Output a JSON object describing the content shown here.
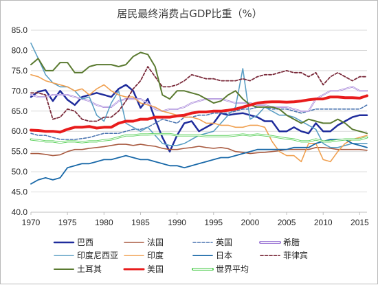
{
  "chart_data": {
    "type": "line",
    "title": "居民最终消费占GDP比重（%）",
    "xlabel": "",
    "ylabel": "",
    "xlim": [
      1970,
      2016
    ],
    "ylim": [
      40,
      85
    ],
    "x_ticks": [
      1970,
      1975,
      1980,
      1985,
      1990,
      1995,
      2000,
      2005,
      2010,
      2015
    ],
    "y_ticks": [
      "40.0",
      "45.0",
      "50.0",
      "55.0",
      "60.0",
      "65.0",
      "70.0",
      "75.0",
      "80.0",
      "85.0"
    ],
    "grid": "horizontal",
    "legend_position": "bottom",
    "x_start": 1970,
    "series": [
      {
        "name": "巴西",
        "color": "#1f2c9c",
        "style": "solid",
        "width": 2.5,
        "values": [
          68.5,
          69.8,
          70.2,
          67.5,
          70.0,
          67.8,
          66.5,
          68.5,
          69.0,
          69.5,
          69.0,
          68.5,
          70.5,
          71.5,
          70.0,
          65.8,
          68.0,
          63.0,
          58.5,
          55.0,
          59.0,
          62.0,
          62.5,
          60.0,
          61.0,
          62.0,
          64.5,
          64.0,
          64.3,
          64.5,
          64.0,
          63.5,
          62.5,
          62.5,
          60.0,
          60.0,
          61.0,
          60.0,
          59.5,
          62.0,
          60.0,
          60.0,
          61.5,
          62.5,
          63.5,
          64.0,
          64.0
        ]
      },
      {
        "name": "法国",
        "color": "#a85a40",
        "style": "solid",
        "width": 1.6,
        "values": [
          54.5,
          54.5,
          54.3,
          54.0,
          54.2,
          55.0,
          55.5,
          55.5,
          55.8,
          56.0,
          56.2,
          56.5,
          56.8,
          56.8,
          56.5,
          56.8,
          56.5,
          56.3,
          55.8,
          55.5,
          55.5,
          55.8,
          56.0,
          56.3,
          56.0,
          55.8,
          56.0,
          55.7,
          55.0,
          54.8,
          54.5,
          54.7,
          54.8,
          55.0,
          55.2,
          55.5,
          55.5,
          55.5,
          55.5,
          56.0,
          56.0,
          55.8,
          55.5,
          55.5,
          55.5,
          55.5,
          55.3
        ]
      },
      {
        "name": "英国",
        "color": "#4a74b0",
        "style": "dashed",
        "width": 1.6,
        "values": [
          59.5,
          59.0,
          59.0,
          58.5,
          58.0,
          58.0,
          58.0,
          58.2,
          58.5,
          59.0,
          59.5,
          59.5,
          59.5,
          60.0,
          60.5,
          60.5,
          61.0,
          62.0,
          63.0,
          62.5,
          62.0,
          63.5,
          63.5,
          64.0,
          64.0,
          64.5,
          64.5,
          64.5,
          65.0,
          65.5,
          65.5,
          66.0,
          66.0,
          65.5,
          65.5,
          65.5,
          65.0,
          64.5,
          65.0,
          65.5,
          65.5,
          65.5,
          65.5,
          65.5,
          65.5,
          65.5,
          66.5
        ]
      },
      {
        "name": "希腊",
        "color": "#9f7cd6",
        "style": "double",
        "width": 2.2,
        "values": [
          69.0,
          68.5,
          68.5,
          69.0,
          69.0,
          69.0,
          68.5,
          68.0,
          67.5,
          66.5,
          66.0,
          66.0,
          67.5,
          68.0,
          68.0,
          68.0,
          67.0,
          65.5,
          65.0,
          65.5,
          65.5,
          66.0,
          67.0,
          67.5,
          68.0,
          68.0,
          68.0,
          67.5,
          67.0,
          67.0,
          67.0,
          66.5,
          66.5,
          66.0,
          66.0,
          66.0,
          65.5,
          65.0,
          65.0,
          68.0,
          69.0,
          70.0,
          70.0,
          70.5,
          71.0,
          70.0,
          70.0
        ]
      },
      {
        "name": "印度尼西亚",
        "color": "#5a9ec4",
        "style": "solid",
        "width": 1.6,
        "values": [
          81.8,
          78.0,
          74.0,
          72.0,
          71.0,
          71.0,
          70.0,
          68.0,
          68.5,
          64.0,
          62.5,
          67.0,
          70.0,
          62.0,
          61.0,
          60.0,
          61.0,
          59.0,
          57.0,
          56.5,
          56.5,
          57.0,
          58.0,
          59.0,
          59.5,
          60.0,
          62.0,
          64.0,
          66.0,
          75.5,
          63.0,
          64.0,
          66.0,
          65.0,
          64.0,
          64.0,
          63.5,
          62.5,
          61.5,
          60.5,
          57.0,
          56.0,
          56.0,
          56.5,
          57.0,
          57.0,
          57.0
        ]
      },
      {
        "name": "印度",
        "color": "#f0a050",
        "style": "solid",
        "width": 1.6,
        "values": [
          74.0,
          73.5,
          72.5,
          72.0,
          71.5,
          71.0,
          70.0,
          70.5,
          69.0,
          70.5,
          71.5,
          70.0,
          69.0,
          68.5,
          68.5,
          67.0,
          66.5,
          66.0,
          65.0,
          64.5,
          64.0,
          63.5,
          63.5,
          63.0,
          62.0,
          62.0,
          61.5,
          61.5,
          61.0,
          61.0,
          61.5,
          61.5,
          61.0,
          57.5,
          55.0,
          54.0,
          54.0,
          52.5,
          57.0,
          57.0,
          53.0,
          52.5,
          55.0,
          57.0,
          58.0,
          58.5,
          59.0
        ]
      },
      {
        "name": "日本",
        "color": "#1868a8",
        "style": "solid",
        "width": 1.8,
        "values": [
          47.0,
          48.0,
          48.5,
          48.0,
          48.5,
          51.0,
          51.5,
          52.0,
          52.0,
          52.5,
          53.0,
          53.0,
          53.5,
          54.0,
          53.5,
          53.0,
          53.0,
          52.5,
          52.0,
          51.5,
          51.5,
          51.0,
          51.5,
          52.0,
          52.5,
          53.0,
          53.5,
          53.5,
          54.0,
          54.5,
          55.0,
          55.5,
          55.5,
          55.5,
          55.5,
          55.5,
          56.0,
          56.0,
          56.0,
          57.0,
          57.5,
          58.0,
          58.0,
          58.0,
          57.0,
          56.5,
          56.0
        ]
      },
      {
        "name": "菲律宾",
        "color": "#7a2a3a",
        "style": "dashed",
        "width": 1.8,
        "values": [
          69.5,
          69.5,
          69.0,
          63.0,
          63.5,
          65.5,
          65.0,
          63.0,
          62.5,
          62.5,
          63.5,
          63.5,
          65.0,
          67.5,
          70.5,
          72.5,
          76.0,
          73.5,
          71.0,
          71.0,
          71.5,
          72.5,
          74.0,
          73.5,
          73.0,
          73.0,
          72.5,
          72.5,
          72.5,
          73.0,
          72.5,
          73.5,
          74.0,
          74.0,
          74.5,
          75.0,
          74.5,
          74.5,
          73.5,
          74.5,
          71.5,
          73.5,
          74.5,
          73.5,
          72.5,
          73.5,
          73.5
        ]
      },
      {
        "name": "土耳其",
        "color": "#5a7a30",
        "style": "solid",
        "width": 2.0,
        "values": [
          76.5,
          78.0,
          75.0,
          75.0,
          77.0,
          77.0,
          74.5,
          74.5,
          76.0,
          76.5,
          76.5,
          76.5,
          76.0,
          76.5,
          78.5,
          79.5,
          79.0,
          76.0,
          69.0,
          68.0,
          70.0,
          70.0,
          69.5,
          69.0,
          68.0,
          67.0,
          67.5,
          69.0,
          70.0,
          68.0,
          66.5,
          66.0,
          66.0,
          66.0,
          65.5,
          64.0,
          63.0,
          62.0,
          63.0,
          62.5,
          62.0,
          62.0,
          63.0,
          62.0,
          60.5,
          60.0,
          59.5
        ]
      },
      {
        "name": "美国",
        "color": "#e81c1c",
        "style": "solid",
        "width": 4.0,
        "values": [
          60.3,
          60.2,
          60.0,
          60.0,
          59.8,
          60.5,
          61.0,
          61.0,
          61.2,
          60.8,
          61.0,
          61.0,
          62.0,
          62.5,
          62.5,
          63.0,
          63.0,
          63.5,
          63.5,
          63.5,
          63.8,
          64.0,
          64.5,
          64.8,
          64.8,
          65.0,
          65.0,
          65.2,
          65.5,
          66.0,
          66.5,
          67.0,
          67.2,
          67.3,
          67.3,
          67.2,
          67.3,
          67.5,
          67.8,
          68.0,
          68.0,
          68.5,
          68.5,
          68.3,
          68.3,
          68.2,
          68.8
        ]
      },
      {
        "name": "世界平均",
        "color": "#5ad05a",
        "style": "double",
        "width": 3.0,
        "values": [
          58.0,
          57.8,
          57.5,
          57.5,
          57.2,
          57.5,
          57.5,
          57.3,
          57.5,
          57.5,
          57.8,
          58.0,
          58.5,
          59.0,
          59.0,
          59.2,
          59.2,
          59.3,
          59.3,
          59.3,
          59.0,
          59.0,
          59.0,
          59.0,
          58.8,
          58.8,
          58.8,
          58.8,
          59.0,
          59.2,
          59.0,
          59.2,
          59.0,
          58.8,
          58.5,
          58.2,
          58.0,
          57.5,
          57.5,
          58.0,
          57.5,
          57.5,
          57.8,
          58.0,
          58.0,
          58.0,
          58.5
        ]
      }
    ]
  }
}
